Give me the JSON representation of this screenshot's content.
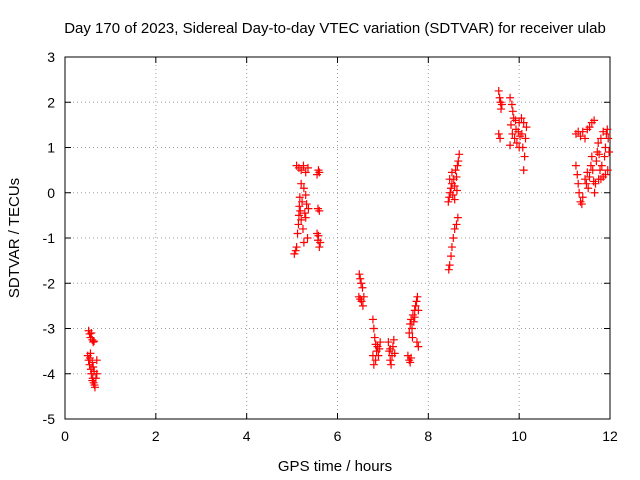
{
  "chart_data": {
    "type": "scatter",
    "title": "Day 170 of 2023, Sidereal Day-to-day VTEC variation (SDTVAR) for receiver ulab",
    "xlabel": "GPS time / hours",
    "ylabel": "SDTVAR / TECUs",
    "xlim": [
      0,
      12
    ],
    "ylim": [
      -5,
      3
    ],
    "xticks": [
      0,
      2,
      4,
      6,
      8,
      10,
      12
    ],
    "yticks": [
      -5,
      -4,
      -3,
      -2,
      -1,
      0,
      1,
      2,
      3
    ],
    "grid": true,
    "marker": "plus",
    "color": "#ff0000",
    "series": [
      {
        "name": "SDTVAR",
        "points": [
          [
            0.52,
            -3.05
          ],
          [
            0.54,
            -3.12
          ],
          [
            0.56,
            -3.2
          ],
          [
            0.58,
            -3.1
          ],
          [
            0.6,
            -3.25
          ],
          [
            0.62,
            -3.3
          ],
          [
            0.64,
            -3.28
          ],
          [
            0.5,
            -3.6
          ],
          [
            0.52,
            -3.7
          ],
          [
            0.54,
            -3.8
          ],
          [
            0.55,
            -3.65
          ],
          [
            0.57,
            -3.9
          ],
          [
            0.58,
            -4.0
          ],
          [
            0.6,
            -3.75
          ],
          [
            0.61,
            -4.1
          ],
          [
            0.62,
            -3.85
          ],
          [
            0.63,
            -4.2
          ],
          [
            0.64,
            -3.95
          ],
          [
            0.65,
            -4.25
          ],
          [
            0.66,
            -4.3
          ],
          [
            0.68,
            -4.1
          ],
          [
            0.7,
            -3.7
          ],
          [
            0.7,
            -4.0
          ],
          [
            0.56,
            -3.55
          ],
          [
            0.6,
            -4.15
          ],
          [
            5.05,
            -1.35
          ],
          [
            5.08,
            -1.28
          ],
          [
            5.1,
            -1.2
          ],
          [
            5.12,
            -0.9
          ],
          [
            5.14,
            -0.7
          ],
          [
            5.15,
            -0.5
          ],
          [
            5.16,
            -0.3
          ],
          [
            5.17,
            -0.1
          ],
          [
            5.18,
            -0.4
          ],
          [
            5.2,
            -0.6
          ],
          [
            5.22,
            -0.2
          ],
          [
            5.24,
            -0.8
          ],
          [
            5.26,
            -1.1
          ],
          [
            5.28,
            -0.45
          ],
          [
            5.3,
            -0.55
          ],
          [
            5.32,
            -0.25
          ],
          [
            5.34,
            -1.0
          ],
          [
            5.36,
            -0.35
          ],
          [
            5.1,
            0.6
          ],
          [
            5.15,
            0.55
          ],
          [
            5.2,
            0.5
          ],
          [
            5.25,
            0.6
          ],
          [
            5.3,
            0.45
          ],
          [
            5.35,
            0.55
          ],
          [
            5.2,
            0.2
          ],
          [
            5.26,
            0.1
          ],
          [
            5.3,
            -0.05
          ],
          [
            5.55,
            0.4
          ],
          [
            5.58,
            0.5
          ],
          [
            5.6,
            0.45
          ],
          [
            5.57,
            -0.35
          ],
          [
            5.6,
            -0.4
          ],
          [
            5.55,
            -0.9
          ],
          [
            5.57,
            -1.05
          ],
          [
            5.6,
            -1.2
          ],
          [
            5.62,
            -1.1
          ],
          [
            5.58,
            -0.95
          ],
          [
            6.48,
            -1.8
          ],
          [
            6.5,
            -1.9
          ],
          [
            6.52,
            -2.0
          ],
          [
            6.55,
            -2.1
          ],
          [
            6.47,
            -2.3
          ],
          [
            6.5,
            -2.35
          ],
          [
            6.53,
            -2.4
          ],
          [
            6.56,
            -2.5
          ],
          [
            6.58,
            -2.3
          ],
          [
            6.78,
            -2.8
          ],
          [
            6.8,
            -3.0
          ],
          [
            6.82,
            -3.2
          ],
          [
            6.84,
            -3.35
          ],
          [
            6.86,
            -3.5
          ],
          [
            6.88,
            -3.4
          ],
          [
            6.9,
            -3.6
          ],
          [
            6.92,
            -3.45
          ],
          [
            6.8,
            -3.8
          ],
          [
            6.84,
            -3.7
          ],
          [
            6.78,
            -3.6
          ],
          [
            6.94,
            -3.3
          ],
          [
            7.12,
            -3.3
          ],
          [
            7.14,
            -3.5
          ],
          [
            7.16,
            -3.7
          ],
          [
            7.18,
            -3.8
          ],
          [
            7.2,
            -3.6
          ],
          [
            7.22,
            -3.4
          ],
          [
            7.24,
            -3.25
          ],
          [
            7.26,
            -3.55
          ],
          [
            7.16,
            -3.45
          ],
          [
            7.55,
            -3.6
          ],
          [
            7.58,
            -3.7
          ],
          [
            7.6,
            -3.75
          ],
          [
            7.62,
            -3.65
          ],
          [
            7.58,
            -3.1
          ],
          [
            7.6,
            -2.9
          ],
          [
            7.62,
            -2.8
          ],
          [
            7.64,
            -3.0
          ],
          [
            7.66,
            -2.7
          ],
          [
            7.68,
            -2.85
          ],
          [
            7.7,
            -2.6
          ],
          [
            7.72,
            -2.5
          ],
          [
            7.74,
            -2.4
          ],
          [
            7.76,
            -2.3
          ],
          [
            7.78,
            -2.6
          ],
          [
            7.75,
            -3.3
          ],
          [
            7.78,
            -3.4
          ],
          [
            7.65,
            -3.2
          ],
          [
            7.7,
            -2.75
          ],
          [
            8.45,
            -1.7
          ],
          [
            8.47,
            -1.6
          ],
          [
            8.5,
            -1.4
          ],
          [
            8.52,
            -1.2
          ],
          [
            8.55,
            -1.0
          ],
          [
            8.58,
            -0.8
          ],
          [
            8.62,
            -0.7
          ],
          [
            8.65,
            -0.55
          ],
          [
            8.44,
            -0.2
          ],
          [
            8.46,
            -0.1
          ],
          [
            8.48,
            0.0
          ],
          [
            8.5,
            0.1
          ],
          [
            8.52,
            0.2
          ],
          [
            8.54,
            -0.05
          ],
          [
            8.56,
            0.3
          ],
          [
            8.58,
            0.15
          ],
          [
            8.6,
            0.5
          ],
          [
            8.62,
            0.35
          ],
          [
            8.64,
            0.6
          ],
          [
            8.66,
            0.7
          ],
          [
            8.68,
            0.85
          ],
          [
            8.52,
            0.45
          ],
          [
            8.47,
            0.3
          ],
          [
            8.58,
            -0.15
          ],
          [
            8.63,
            0.05
          ],
          [
            9.55,
            2.25
          ],
          [
            9.57,
            2.1
          ],
          [
            9.59,
            2.0
          ],
          [
            9.6,
            1.85
          ],
          [
            9.62,
            1.95
          ],
          [
            9.55,
            1.3
          ],
          [
            9.58,
            1.2
          ],
          [
            9.8,
            2.1
          ],
          [
            9.84,
            1.95
          ],
          [
            9.86,
            1.8
          ],
          [
            9.88,
            1.65
          ],
          [
            9.82,
            1.5
          ],
          [
            9.85,
            1.3
          ],
          [
            9.9,
            1.2
          ],
          [
            9.93,
            1.4
          ],
          [
            9.95,
            1.1
          ],
          [
            9.98,
            1.35
          ],
          [
            10.0,
            1.55
          ],
          [
            10.02,
            1.25
          ],
          [
            10.05,
            1.65
          ],
          [
            10.08,
            1.0
          ],
          [
            10.1,
            0.5
          ],
          [
            10.12,
            0.8
          ],
          [
            10.14,
            1.2
          ],
          [
            10.16,
            1.45
          ],
          [
            10.0,
            1.0
          ],
          [
            9.92,
            1.6
          ],
          [
            9.8,
            1.05
          ],
          [
            10.06,
            1.3
          ],
          [
            10.1,
            1.55
          ],
          [
            11.25,
            1.3
          ],
          [
            11.3,
            1.35
          ],
          [
            11.35,
            1.25
          ],
          [
            11.4,
            1.35
          ],
          [
            11.45,
            1.2
          ],
          [
            11.5,
            1.4
          ],
          [
            11.55,
            1.45
          ],
          [
            11.6,
            1.55
          ],
          [
            11.65,
            1.6
          ],
          [
            11.25,
            0.6
          ],
          [
            11.28,
            0.4
          ],
          [
            11.3,
            0.2
          ],
          [
            11.32,
            0.0
          ],
          [
            11.35,
            -0.2
          ],
          [
            11.38,
            -0.25
          ],
          [
            11.4,
            -0.1
          ],
          [
            11.45,
            0.3
          ],
          [
            11.48,
            0.2
          ],
          [
            11.5,
            0.45
          ],
          [
            11.52,
            0.1
          ],
          [
            11.55,
            0.35
          ],
          [
            11.58,
            0.6
          ],
          [
            11.6,
            0.8
          ],
          [
            11.62,
            0.5
          ],
          [
            11.64,
            0.25
          ],
          [
            11.66,
            0.0
          ],
          [
            11.68,
            0.2
          ],
          [
            11.7,
            0.7
          ],
          [
            11.72,
            0.9
          ],
          [
            11.74,
            1.1
          ],
          [
            11.76,
            0.85
          ],
          [
            11.78,
            0.5
          ],
          [
            11.8,
            0.3
          ],
          [
            11.82,
            0.6
          ],
          [
            11.85,
            0.35
          ],
          [
            11.88,
            0.8
          ],
          [
            11.9,
            1.0
          ],
          [
            11.92,
            1.3
          ],
          [
            11.94,
            1.4
          ],
          [
            11.96,
            1.2
          ],
          [
            11.98,
            0.9
          ],
          [
            11.95,
            0.5
          ],
          [
            11.9,
            0.4
          ],
          [
            11.85,
            1.35
          ],
          [
            11.8,
            1.2
          ],
          [
            11.75,
            0.3
          ]
        ]
      }
    ]
  }
}
